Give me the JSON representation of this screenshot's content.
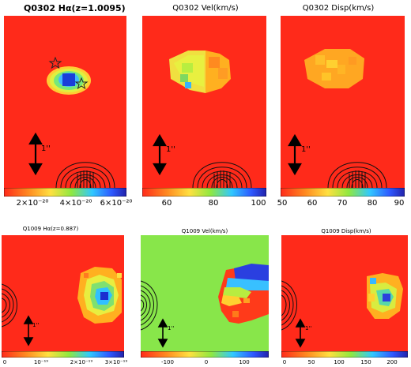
{
  "titles": {
    "q0302_ha": "Q0302 Hα(z=1.0095)",
    "q0302_vel": "Q0302 Vel(km/s)",
    "q0302_disp": "Q0302 Disp(km/s)",
    "q1009_ha": "Q1009 Hα(z=0.887)",
    "q1009_vel": "Q1009 Vel(km/s)",
    "q1009_disp": "Q1009 Disp(km/s)"
  },
  "scale_label": "1''",
  "colorbars": {
    "q0302_ha": [
      "2×10⁻²⁰",
      "4×10⁻²⁰",
      "6×10⁻²⁰"
    ],
    "q0302_vel": [
      "60",
      "80",
      "100"
    ],
    "q0302_disp": [
      "50",
      "60",
      "70",
      "80",
      "90"
    ],
    "q1009_ha": [
      "0",
      "10⁻¹⁹",
      "2×10⁻¹⁹",
      "3×10⁻¹⁹"
    ],
    "q1009_vel": [
      "-100",
      "0",
      "100"
    ],
    "q1009_disp": [
      "0",
      "50",
      "100",
      "150",
      "200"
    ]
  },
  "colors": {
    "background_map": "#ff2a1a",
    "vel_background": "#88e64a",
    "star_marker": "#222222"
  },
  "icons": {
    "star": "star-icon",
    "arrow": "double-arrow-icon",
    "contour": "contour-lines"
  }
}
